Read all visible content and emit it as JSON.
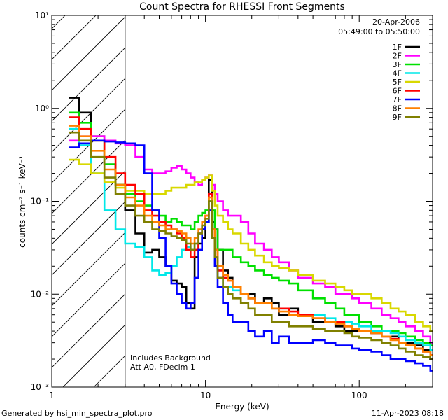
{
  "chart_data": {
    "type": "line",
    "title": "Count Spectra for RHESSI Front Segments",
    "xlabel": "Energy (keV)",
    "ylabel": "counts cm⁻² s⁻¹ keV⁻¹",
    "xscale": "log",
    "yscale": "log",
    "xlim": [
      1,
      300
    ],
    "ylim": [
      0.001,
      10
    ],
    "x_ticks": [
      {
        "value": 1,
        "label": "1"
      },
      {
        "value": 10,
        "label": "10"
      },
      {
        "value": 100,
        "label": "100"
      }
    ],
    "y_ticks": [
      {
        "value": 0.001,
        "label": "10⁻³"
      },
      {
        "value": 0.01,
        "label": "10⁻²"
      },
      {
        "value": 0.1,
        "label": "10⁻¹"
      },
      {
        "value": 1,
        "label": "10⁰"
      },
      {
        "value": 10,
        "label": "10¹"
      }
    ],
    "date": "20-Apr-2006",
    "time_range": "05:49:00 to 05:50:00",
    "hatched_region_max_energy": 3,
    "annotations": [
      "Includes Background",
      "Att A0, FDecim 1"
    ],
    "series": [
      {
        "name": "1F",
        "color": "#000000",
        "x": [
          1.3,
          1.5,
          1.8,
          2.2,
          2.6,
          3,
          3.5,
          4,
          4.5,
          5,
          5.5,
          6,
          6.5,
          7,
          7.5,
          8,
          8.5,
          9,
          9.5,
          10,
          10.5,
          11,
          11.5,
          12,
          13,
          14,
          15,
          17,
          19,
          21,
          24,
          27,
          30,
          35,
          40,
          50,
          60,
          70,
          80,
          90,
          100,
          120,
          140,
          160,
          180,
          200,
          230,
          260,
          290
        ],
        "values": [
          1.3,
          0.9,
          0.5,
          0.25,
          0.15,
          0.08,
          0.045,
          0.028,
          0.03,
          0.025,
          0.02,
          0.014,
          0.013,
          0.012,
          0.008,
          0.007,
          0.025,
          0.035,
          0.04,
          0.06,
          0.17,
          0.06,
          0.05,
          0.03,
          0.018,
          0.015,
          0.012,
          0.01,
          0.01,
          0.008,
          0.009,
          0.008,
          0.006,
          0.007,
          0.006,
          0.005,
          0.005,
          0.0045,
          0.004,
          0.004,
          0.004,
          0.0038,
          0.0035,
          0.0035,
          0.003,
          0.003,
          0.0028,
          0.0025,
          0.0022
        ]
      },
      {
        "name": "2F",
        "color": "#ff00ff",
        "x": [
          1.3,
          1.5,
          1.8,
          2.2,
          2.6,
          3,
          3.5,
          4,
          4.5,
          5,
          5.5,
          6,
          6.5,
          7,
          7.5,
          8,
          8.5,
          9,
          9.5,
          10,
          10.5,
          11,
          11.5,
          12,
          13,
          14,
          15,
          17,
          19,
          21,
          24,
          27,
          30,
          35,
          40,
          50,
          60,
          70,
          80,
          90,
          100,
          120,
          140,
          160,
          180,
          200,
          230,
          260,
          290
        ],
        "values": [
          0.45,
          0.5,
          0.5,
          0.45,
          0.42,
          0.4,
          0.3,
          0.22,
          0.2,
          0.2,
          0.21,
          0.23,
          0.24,
          0.22,
          0.2,
          0.18,
          0.16,
          0.15,
          0.17,
          0.18,
          0.19,
          0.15,
          0.12,
          0.1,
          0.08,
          0.07,
          0.07,
          0.06,
          0.045,
          0.035,
          0.03,
          0.025,
          0.022,
          0.018,
          0.015,
          0.013,
          0.012,
          0.01,
          0.01,
          0.009,
          0.008,
          0.007,
          0.006,
          0.0055,
          0.005,
          0.0045,
          0.004,
          0.0035,
          0.003
        ]
      },
      {
        "name": "3F",
        "color": "#00e000",
        "x": [
          1.3,
          1.5,
          1.8,
          2.2,
          2.6,
          3,
          3.5,
          4,
          4.5,
          5,
          5.5,
          6,
          6.5,
          7,
          7.5,
          8,
          8.5,
          9,
          9.5,
          10,
          10.5,
          11,
          11.5,
          12,
          13,
          14,
          15,
          17,
          19,
          21,
          24,
          27,
          30,
          35,
          40,
          50,
          60,
          70,
          80,
          90,
          100,
          120,
          140,
          160,
          180,
          200,
          230,
          260,
          290
        ],
        "values": [
          0.9,
          0.7,
          0.45,
          0.25,
          0.15,
          0.12,
          0.1,
          0.09,
          0.08,
          0.07,
          0.06,
          0.065,
          0.06,
          0.055,
          0.055,
          0.05,
          0.06,
          0.07,
          0.075,
          0.08,
          0.1,
          0.08,
          0.05,
          0.03,
          0.03,
          0.03,
          0.025,
          0.022,
          0.02,
          0.018,
          0.016,
          0.015,
          0.014,
          0.013,
          0.011,
          0.009,
          0.008,
          0.007,
          0.006,
          0.006,
          0.005,
          0.0045,
          0.004,
          0.004,
          0.0038,
          0.0035,
          0.0032,
          0.003,
          0.0028
        ]
      },
      {
        "name": "4F",
        "color": "#00e8e8",
        "x": [
          1.3,
          1.5,
          1.8,
          2.2,
          2.6,
          3,
          3.5,
          4,
          4.5,
          5,
          5.5,
          6,
          6.5,
          7,
          7.5,
          8,
          8.5,
          9,
          9.5,
          10,
          10.5,
          11,
          11.5,
          12,
          13,
          14,
          15,
          17,
          19,
          21,
          24,
          27,
          30,
          35,
          40,
          50,
          60,
          70,
          80,
          90,
          100,
          120,
          140,
          160,
          180,
          200,
          230,
          260,
          290
        ],
        "values": [
          0.6,
          0.4,
          0.2,
          0.08,
          0.05,
          0.035,
          0.032,
          0.025,
          0.018,
          0.016,
          0.017,
          0.02,
          0.025,
          0.03,
          0.032,
          0.03,
          0.035,
          0.045,
          0.05,
          0.06,
          0.1,
          0.05,
          0.03,
          0.015,
          0.012,
          0.012,
          0.011,
          0.01,
          0.009,
          0.008,
          0.008,
          0.007,
          0.007,
          0.006,
          0.006,
          0.006,
          0.0055,
          0.005,
          0.005,
          0.0048,
          0.0045,
          0.004,
          0.004,
          0.0038,
          0.0035,
          0.0032,
          0.003,
          0.0028,
          0.0025
        ]
      },
      {
        "name": "5F",
        "color": "#d8d800",
        "x": [
          1.3,
          1.5,
          1.8,
          2.2,
          2.6,
          3,
          3.5,
          4,
          4.5,
          5,
          5.5,
          6,
          6.5,
          7,
          7.5,
          8,
          8.5,
          9,
          9.5,
          10,
          10.5,
          11,
          11.5,
          12,
          13,
          14,
          15,
          17,
          19,
          21,
          24,
          27,
          30,
          35,
          40,
          50,
          60,
          70,
          80,
          90,
          100,
          120,
          140,
          160,
          180,
          200,
          230,
          260,
          290
        ],
        "values": [
          0.28,
          0.25,
          0.2,
          0.16,
          0.14,
          0.13,
          0.13,
          0.12,
          0.12,
          0.12,
          0.13,
          0.14,
          0.14,
          0.14,
          0.15,
          0.15,
          0.16,
          0.16,
          0.17,
          0.18,
          0.19,
          0.13,
          0.09,
          0.07,
          0.06,
          0.05,
          0.045,
          0.035,
          0.03,
          0.026,
          0.022,
          0.02,
          0.019,
          0.018,
          0.016,
          0.014,
          0.013,
          0.012,
          0.011,
          0.01,
          0.01,
          0.009,
          0.008,
          0.007,
          0.0065,
          0.006,
          0.005,
          0.0045,
          0.004
        ]
      },
      {
        "name": "6F",
        "color": "#ff0000",
        "x": [
          1.3,
          1.5,
          1.8,
          2.2,
          2.6,
          3,
          3.5,
          4,
          4.5,
          5,
          5.5,
          6,
          6.5,
          7,
          7.5,
          8,
          8.5,
          9,
          9.5,
          10,
          10.5,
          11,
          11.5,
          12,
          13,
          14,
          15,
          17,
          19,
          21,
          24,
          27,
          30,
          35,
          40,
          50,
          60,
          70,
          80,
          90,
          100,
          120,
          140,
          160,
          180,
          200,
          230,
          260,
          290
        ],
        "values": [
          0.8,
          0.6,
          0.45,
          0.3,
          0.2,
          0.15,
          0.12,
          0.08,
          0.07,
          0.06,
          0.055,
          0.05,
          0.045,
          0.04,
          0.03,
          0.025,
          0.03,
          0.045,
          0.05,
          0.07,
          0.12,
          0.05,
          0.03,
          0.018,
          0.015,
          0.014,
          0.012,
          0.01,
          0.009,
          0.008,
          0.008,
          0.007,
          0.007,
          0.0065,
          0.006,
          0.0055,
          0.005,
          0.005,
          0.0045,
          0.0042,
          0.004,
          0.0038,
          0.0035,
          0.0033,
          0.003,
          0.0028,
          0.0026,
          0.0024,
          0.0022
        ]
      },
      {
        "name": "7F",
        "color": "#0000ff",
        "x": [
          1.3,
          1.5,
          1.8,
          2.2,
          2.6,
          3,
          3.5,
          4,
          4.5,
          5,
          5.5,
          6,
          6.5,
          7,
          7.5,
          8,
          8.5,
          9,
          9.5,
          10,
          10.5,
          11,
          11.5,
          12,
          13,
          14,
          15,
          17,
          19,
          21,
          24,
          27,
          30,
          35,
          40,
          50,
          60,
          70,
          80,
          90,
          100,
          120,
          140,
          160,
          180,
          200,
          230,
          260,
          290
        ],
        "values": [
          0.38,
          0.42,
          0.45,
          0.44,
          0.43,
          0.42,
          0.4,
          0.2,
          0.08,
          0.04,
          0.02,
          0.013,
          0.01,
          0.008,
          0.007,
          0.008,
          0.015,
          0.03,
          0.05,
          0.06,
          0.08,
          0.04,
          0.02,
          0.012,
          0.008,
          0.006,
          0.005,
          0.005,
          0.004,
          0.0035,
          0.004,
          0.003,
          0.0035,
          0.003,
          0.003,
          0.0032,
          0.003,
          0.0028,
          0.0028,
          0.0026,
          0.0025,
          0.0024,
          0.0022,
          0.002,
          0.002,
          0.0019,
          0.0018,
          0.0017,
          0.0015
        ]
      },
      {
        "name": "8F",
        "color": "#ff8000",
        "x": [
          1.3,
          1.5,
          1.8,
          2.2,
          2.6,
          3,
          3.5,
          4,
          4.5,
          5,
          5.5,
          6,
          6.5,
          7,
          7.5,
          8,
          8.5,
          9,
          9.5,
          10,
          10.5,
          11,
          11.5,
          12,
          13,
          14,
          15,
          17,
          19,
          21,
          24,
          27,
          30,
          35,
          40,
          50,
          60,
          70,
          80,
          90,
          100,
          120,
          140,
          160,
          180,
          200,
          230,
          260,
          290
        ],
        "values": [
          0.65,
          0.5,
          0.35,
          0.22,
          0.15,
          0.11,
          0.09,
          0.07,
          0.06,
          0.055,
          0.05,
          0.05,
          0.048,
          0.045,
          0.04,
          0.035,
          0.04,
          0.05,
          0.06,
          0.07,
          0.11,
          0.05,
          0.03,
          0.02,
          0.016,
          0.014,
          0.012,
          0.01,
          0.009,
          0.008,
          0.008,
          0.007,
          0.0065,
          0.006,
          0.0058,
          0.0055,
          0.005,
          0.0048,
          0.0045,
          0.0042,
          0.004,
          0.0038,
          0.0035,
          0.0032,
          0.003,
          0.0028,
          0.0026,
          0.0024,
          0.0022
        ]
      },
      {
        "name": "9F",
        "color": "#808000",
        "x": [
          1.3,
          1.5,
          1.8,
          2.2,
          2.6,
          3,
          3.5,
          4,
          4.5,
          5,
          5.5,
          6,
          6.5,
          7,
          7.5,
          8,
          8.5,
          9,
          9.5,
          10,
          10.5,
          11,
          11.5,
          12,
          13,
          14,
          15,
          17,
          19,
          21,
          24,
          27,
          30,
          35,
          40,
          50,
          60,
          70,
          80,
          90,
          100,
          120,
          140,
          160,
          180,
          200,
          230,
          260,
          290
        ],
        "values": [
          0.55,
          0.45,
          0.3,
          0.18,
          0.12,
          0.09,
          0.07,
          0.06,
          0.05,
          0.048,
          0.045,
          0.042,
          0.04,
          0.038,
          0.035,
          0.03,
          0.035,
          0.045,
          0.055,
          0.065,
          0.1,
          0.04,
          0.025,
          0.015,
          0.012,
          0.01,
          0.009,
          0.008,
          0.007,
          0.006,
          0.006,
          0.005,
          0.005,
          0.0045,
          0.0045,
          0.0042,
          0.004,
          0.004,
          0.0038,
          0.0035,
          0.0034,
          0.0032,
          0.003,
          0.0028,
          0.0026,
          0.0024,
          0.0022,
          0.0021,
          0.002
        ]
      }
    ]
  },
  "footer": {
    "generated_by": "Generated by hsi_min_spectra_plot.pro",
    "timestamp": "11-Apr-2023 08:18"
  }
}
